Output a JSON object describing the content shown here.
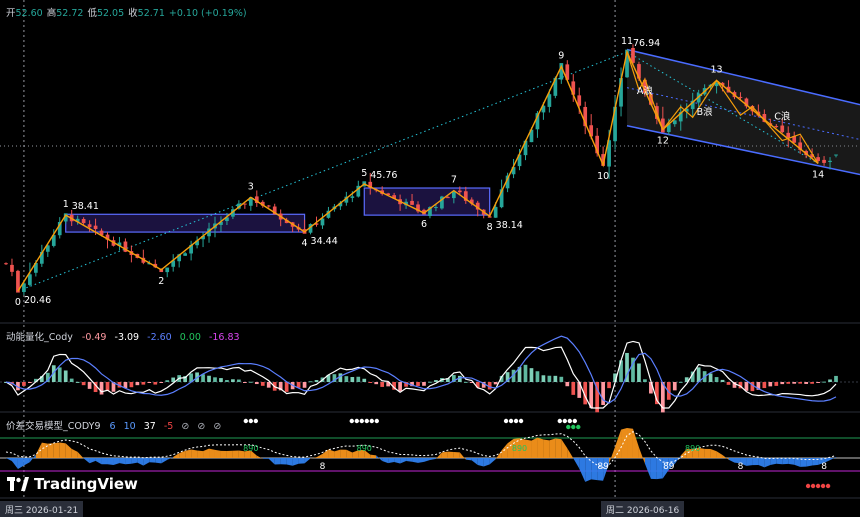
{
  "ohlc": {
    "open_label": "开",
    "open": "52.60",
    "high_label": "高",
    "high": "52.72",
    "low_label": "低",
    "low": "52.05",
    "close_label": "收",
    "close": "52.71",
    "change": "+0.10 (+0.19%)"
  },
  "indicator1": {
    "name": "动能量化_Cody",
    "values": [
      {
        "text": "-0.49",
        "color": "#ff9aa2"
      },
      {
        "text": "-3.09",
        "color": "#ffffff"
      },
      {
        "text": "-2.60",
        "color": "#5b7fff"
      },
      {
        "text": "0.00",
        "color": "#22c55e"
      },
      {
        "text": "-16.83",
        "color": "#d946ef"
      }
    ]
  },
  "indicator2": {
    "name": "价差交易模型_CODY9",
    "values": [
      {
        "text": "6",
        "color": "#5b9bff"
      },
      {
        "text": "10",
        "color": "#5b9bff"
      },
      {
        "text": "37",
        "color": "#ffffff"
      },
      {
        "text": "-5",
        "color": "#ef4444"
      },
      {
        "text": "⊘",
        "color": "#b2b5be"
      },
      {
        "text": "⊘",
        "color": "#b2b5be"
      },
      {
        "text": "⊘",
        "color": "#b2b5be"
      }
    ]
  },
  "watermark": "TradingView",
  "date_labels": [
    "周三  2026-01-21",
    "周二  2026-06-16"
  ],
  "chart_data": {
    "type": "candlestick",
    "price_labels": [
      {
        "text": "20.46",
        "i": 2,
        "price": 20.46,
        "pos": "below"
      },
      {
        "text": "38.41",
        "i": 10,
        "price": 38.41,
        "pos": "above"
      },
      {
        "text": "34.44",
        "i": 50,
        "price": 34.44,
        "pos": "below"
      },
      {
        "text": "45.76",
        "i": 60,
        "price": 45.76,
        "pos": "above"
      },
      {
        "text": "38.14",
        "i": 81,
        "price": 38.14,
        "pos": "below"
      },
      {
        "text": "76.94",
        "i": 104,
        "price": 76.94,
        "pos": "above"
      }
    ],
    "wave_points": [
      {
        "label": "0",
        "i": 2,
        "price": 20.46,
        "pos": "below"
      },
      {
        "label": "1",
        "i": 10,
        "price": 38.41,
        "pos": "above"
      },
      {
        "label": "2",
        "i": 26,
        "price": 25.5,
        "pos": "below"
      },
      {
        "label": "3",
        "i": 41,
        "price": 42.6,
        "pos": "above"
      },
      {
        "label": "4",
        "i": 50,
        "price": 34.44,
        "pos": "below"
      },
      {
        "label": "5",
        "i": 60,
        "price": 45.76,
        "pos": "above"
      },
      {
        "label": "6",
        "i": 70,
        "price": 38.9,
        "pos": "below"
      },
      {
        "label": "7",
        "i": 75,
        "price": 44.2,
        "pos": "above"
      },
      {
        "label": "8",
        "i": 81,
        "price": 38.14,
        "pos": "below"
      },
      {
        "label": "9",
        "i": 93,
        "price": 73.5,
        "pos": "above"
      },
      {
        "label": "10",
        "i": 100,
        "price": 50.2,
        "pos": "below"
      },
      {
        "label": "11",
        "i": 104,
        "price": 76.94,
        "pos": "above"
      },
      {
        "label": "12",
        "i": 110,
        "price": 58.6,
        "pos": "below"
      },
      {
        "label": "13",
        "i": 119,
        "price": 70.2,
        "pos": "above"
      },
      {
        "label": "14",
        "i": 136,
        "price": 50.6,
        "pos": "below"
      }
    ],
    "wave_text": [
      {
        "label": "A浪",
        "i": 107,
        "price": 67.0
      },
      {
        "label": "B浪",
        "i": 117,
        "price": 62.0
      },
      {
        "label": "C浪",
        "i": 130,
        "price": 61.0
      }
    ],
    "osc_labels": [
      {
        "text": "8",
        "i": 53
      },
      {
        "text": "89",
        "i": 100
      },
      {
        "text": "89",
        "i": 111
      },
      {
        "text": "8",
        "i": 123
      },
      {
        "text": "8",
        "i": 137
      }
    ],
    "osc_inline": [
      {
        "text": "890",
        "i": 41
      },
      {
        "text": "890",
        "i": 60
      },
      {
        "text": "890",
        "i": 86
      },
      {
        "text": "890",
        "i": 115
      }
    ],
    "dots_white": [
      {
        "i": 41,
        "n": 3
      },
      {
        "i": 60,
        "n": 6
      },
      {
        "i": 85,
        "n": 4
      },
      {
        "i": 94,
        "n": 4
      }
    ],
    "dots_green": [
      {
        "i": 95,
        "n": 3
      }
    ],
    "dots_red": [
      {
        "i": 136,
        "n": 5
      }
    ]
  }
}
